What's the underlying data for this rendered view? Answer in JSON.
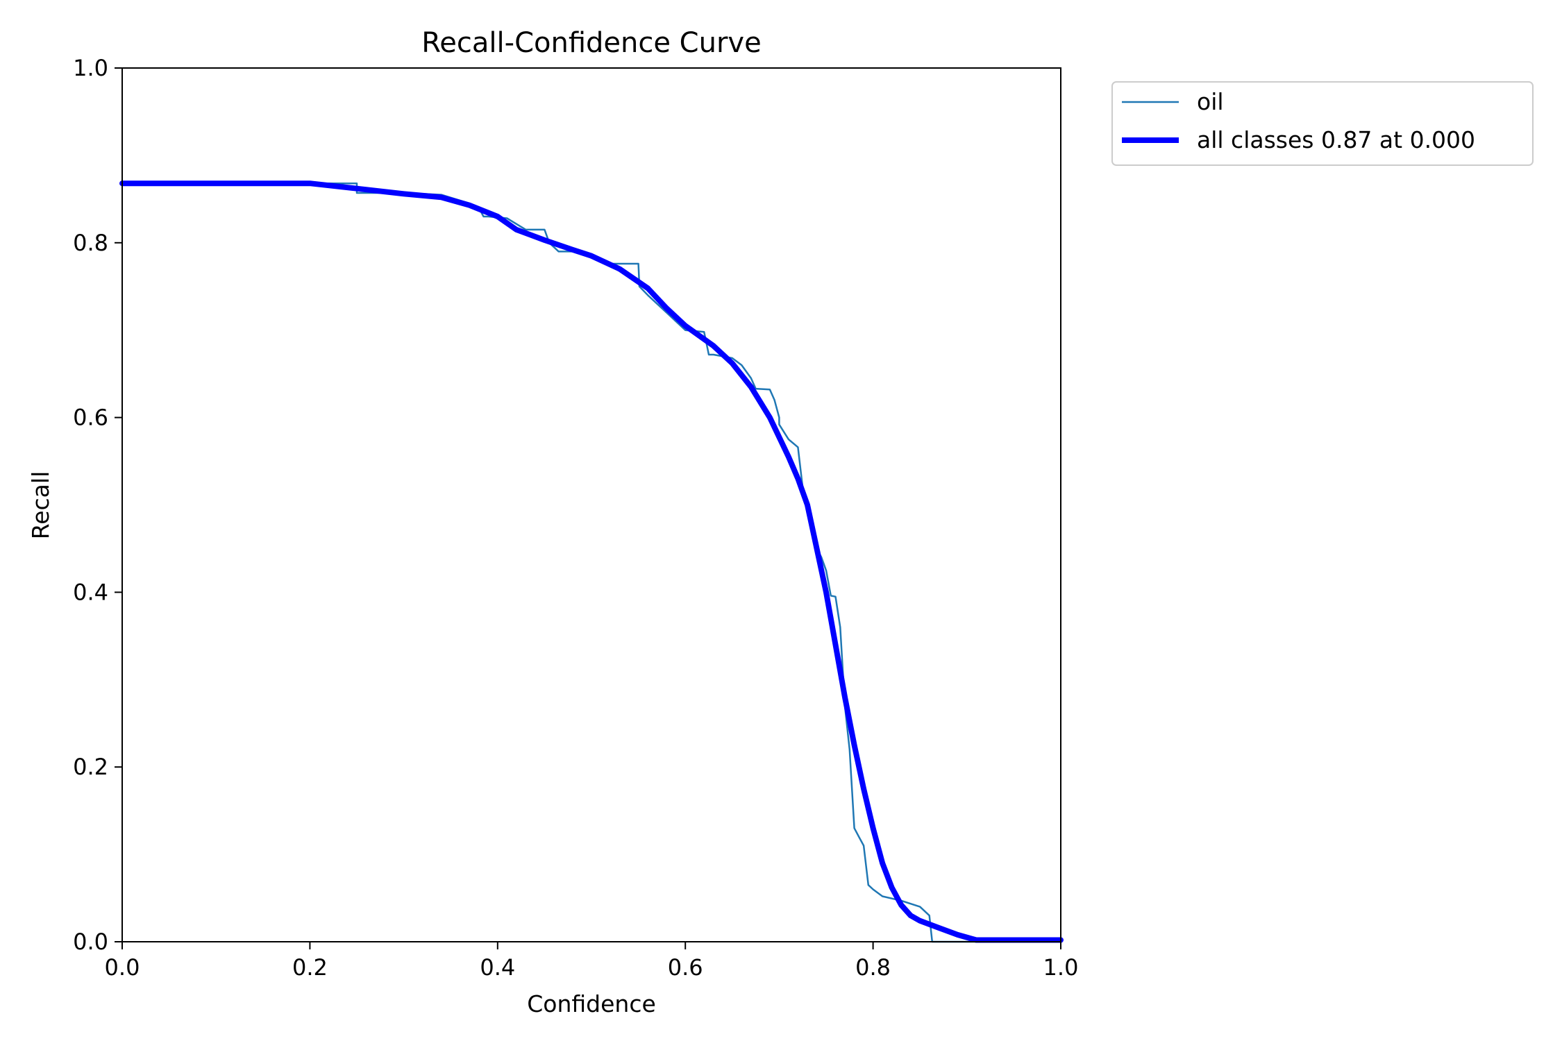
{
  "chart_data": {
    "type": "line",
    "title": "Recall-Confidence Curve",
    "xlabel": "Confidence",
    "ylabel": "Recall",
    "xlim": [
      0.0,
      1.0
    ],
    "ylim": [
      0.0,
      1.0
    ],
    "xticks": [
      "0.0",
      "0.2",
      "0.4",
      "0.6",
      "0.8",
      "1.0"
    ],
    "yticks": [
      "0.0",
      "0.2",
      "0.4",
      "0.6",
      "0.8",
      "1.0"
    ],
    "grid": false,
    "legend_position": "outside-top-right",
    "series": [
      {
        "name": "oil",
        "color": "#1f77b4",
        "x": [
          0.0,
          0.2,
          0.25,
          0.25,
          0.3,
          0.34,
          0.37,
          0.38,
          0.385,
          0.39,
          0.41,
          0.43,
          0.45,
          0.455,
          0.465,
          0.49,
          0.5,
          0.51,
          0.52,
          0.53,
          0.55,
          0.551,
          0.56,
          0.58,
          0.6,
          0.62,
          0.625,
          0.63,
          0.65,
          0.66,
          0.67,
          0.675,
          0.69,
          0.695,
          0.7,
          0.7,
          0.71,
          0.72,
          0.725,
          0.73,
          0.735,
          0.74,
          0.745,
          0.75,
          0.755,
          0.76,
          0.765,
          0.77,
          0.775,
          0.78,
          0.785,
          0.79,
          0.795,
          0.8,
          0.81,
          0.83,
          0.85,
          0.86,
          0.863,
          0.87,
          0.88,
          0.9,
          1.0
        ],
        "y": [
          0.868,
          0.868,
          0.868,
          0.857,
          0.857,
          0.855,
          0.845,
          0.84,
          0.83,
          0.83,
          0.828,
          0.815,
          0.815,
          0.8,
          0.79,
          0.79,
          0.785,
          0.778,
          0.776,
          0.776,
          0.776,
          0.75,
          0.74,
          0.72,
          0.7,
          0.698,
          0.672,
          0.672,
          0.668,
          0.66,
          0.645,
          0.633,
          0.632,
          0.62,
          0.6,
          0.592,
          0.575,
          0.566,
          0.52,
          0.49,
          0.47,
          0.45,
          0.44,
          0.425,
          0.396,
          0.395,
          0.36,
          0.27,
          0.22,
          0.13,
          0.12,
          0.11,
          0.065,
          0.06,
          0.052,
          0.047,
          0.04,
          0.03,
          0.0,
          0.0,
          0.0,
          0.0,
          0.0
        ]
      },
      {
        "name": "all classes 0.87 at 0.000",
        "color": "#0000ff",
        "x": [
          0.0,
          0.2,
          0.25,
          0.3,
          0.34,
          0.37,
          0.4,
          0.42,
          0.45,
          0.48,
          0.5,
          0.53,
          0.56,
          0.58,
          0.6,
          0.63,
          0.65,
          0.67,
          0.69,
          0.71,
          0.72,
          0.73,
          0.74,
          0.75,
          0.76,
          0.77,
          0.78,
          0.79,
          0.8,
          0.81,
          0.82,
          0.83,
          0.84,
          0.85,
          0.87,
          0.89,
          0.91,
          1.0
        ],
        "y": [
          0.868,
          0.868,
          0.862,
          0.856,
          0.852,
          0.843,
          0.83,
          0.815,
          0.803,
          0.792,
          0.785,
          0.77,
          0.748,
          0.725,
          0.705,
          0.682,
          0.662,
          0.635,
          0.6,
          0.555,
          0.53,
          0.5,
          0.45,
          0.4,
          0.34,
          0.28,
          0.225,
          0.175,
          0.13,
          0.09,
          0.062,
          0.042,
          0.03,
          0.024,
          0.016,
          0.008,
          0.002,
          0.002
        ]
      }
    ]
  }
}
